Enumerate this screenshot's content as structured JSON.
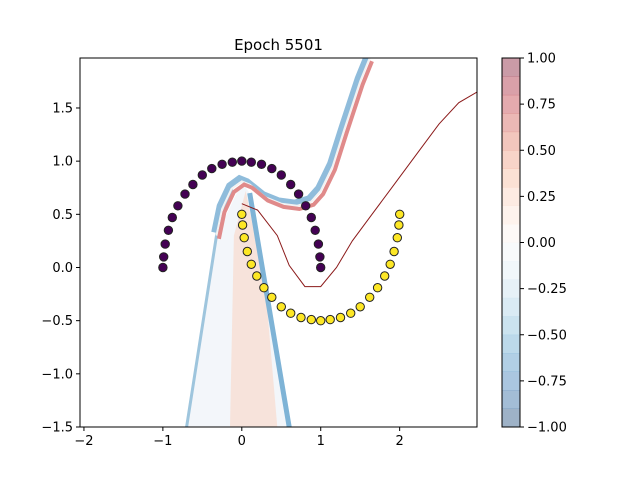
{
  "chart_data": {
    "type": "scatter",
    "title": "Epoch 5501",
    "xlabel": "",
    "ylabel": "",
    "xlim": [
      -2.05,
      2.98
    ],
    "ylim": [
      -1.5,
      1.97
    ],
    "xticks": [
      -2,
      -1,
      0,
      1,
      2
    ],
    "xtick_labels": [
      "−2",
      "−1",
      "0",
      "1",
      "2"
    ],
    "yticks": [
      -1.5,
      -1.0,
      -0.5,
      0.0,
      0.5,
      1.0,
      1.5
    ],
    "ytick_labels": [
      "−1.5",
      "−1.0",
      "−0.5",
      "0.0",
      "0.5",
      "1.0",
      "1.5"
    ],
    "grid": false,
    "series": [
      {
        "label_value": 0,
        "color": "#440154",
        "shape": "upper-moon",
        "points": [
          [
            -1.0,
            0.0
          ],
          [
            -0.99,
            0.1
          ],
          [
            -0.97,
            0.22
          ],
          [
            -0.93,
            0.35
          ],
          [
            -0.88,
            0.47
          ],
          [
            -0.81,
            0.58
          ],
          [
            -0.72,
            0.69
          ],
          [
            -0.62,
            0.78
          ],
          [
            -0.5,
            0.87
          ],
          [
            -0.38,
            0.93
          ],
          [
            -0.25,
            0.97
          ],
          [
            -0.12,
            0.99
          ],
          [
            0.0,
            1.0
          ],
          [
            0.12,
            0.99
          ],
          [
            0.25,
            0.97
          ],
          [
            0.38,
            0.93
          ],
          [
            0.5,
            0.87
          ],
          [
            0.62,
            0.78
          ],
          [
            0.72,
            0.69
          ],
          [
            0.81,
            0.58
          ],
          [
            0.88,
            0.47
          ],
          [
            0.93,
            0.35
          ],
          [
            0.97,
            0.22
          ],
          [
            0.99,
            0.1
          ],
          [
            1.0,
            0.0
          ]
        ]
      },
      {
        "label_value": 1,
        "color": "#fde725",
        "shape": "lower-moon",
        "points": [
          [
            0.0,
            0.5
          ],
          [
            0.01,
            0.4
          ],
          [
            0.03,
            0.28
          ],
          [
            0.07,
            0.15
          ],
          [
            0.12,
            0.03
          ],
          [
            0.19,
            -0.08
          ],
          [
            0.28,
            -0.19
          ],
          [
            0.38,
            -0.28
          ],
          [
            0.5,
            -0.37
          ],
          [
            0.62,
            -0.43
          ],
          [
            0.75,
            -0.47
          ],
          [
            0.88,
            -0.49
          ],
          [
            1.0,
            -0.5
          ],
          [
            1.12,
            -0.49
          ],
          [
            1.25,
            -0.47
          ],
          [
            1.38,
            -0.43
          ],
          [
            1.5,
            -0.37
          ],
          [
            1.62,
            -0.28
          ],
          [
            1.72,
            -0.19
          ],
          [
            1.81,
            -0.08
          ],
          [
            1.88,
            0.03
          ],
          [
            1.93,
            0.15
          ],
          [
            1.97,
            0.28
          ],
          [
            1.99,
            0.4
          ],
          [
            2.0,
            0.5
          ]
        ]
      }
    ],
    "decision_boundary": {
      "level_0_contour": [
        [
          -0.32,
          0.3
        ],
        [
          -0.25,
          0.55
        ],
        [
          -0.13,
          0.74
        ],
        [
          0.0,
          0.81
        ],
        [
          0.1,
          0.78
        ],
        [
          0.3,
          0.66
        ],
        [
          0.5,
          0.6
        ],
        [
          0.7,
          0.58
        ],
        [
          0.88,
          0.62
        ],
        [
          1.0,
          0.72
        ],
        [
          1.15,
          0.95
        ],
        [
          1.3,
          1.3
        ],
        [
          1.5,
          1.75
        ],
        [
          1.62,
          1.97
        ]
      ],
      "wedge": [
        [
          -0.7,
          -1.5
        ],
        [
          -0.32,
          0.3
        ],
        [
          0.0,
          0.8
        ],
        [
          0.1,
          0.7
        ],
        [
          0.6,
          -1.5
        ]
      ],
      "dark_red_boundary": [
        [
          0.0,
          0.6
        ],
        [
          0.2,
          0.54
        ],
        [
          0.45,
          0.3
        ],
        [
          0.6,
          0.02
        ],
        [
          0.8,
          -0.18
        ],
        [
          1.0,
          -0.18
        ],
        [
          1.2,
          0.0
        ],
        [
          1.4,
          0.25
        ],
        [
          1.65,
          0.5
        ],
        [
          1.9,
          0.75
        ],
        [
          2.2,
          1.05
        ],
        [
          2.5,
          1.35
        ],
        [
          2.75,
          1.55
        ],
        [
          2.98,
          1.65
        ]
      ]
    },
    "colorbar": {
      "min": -1.0,
      "max": 1.0,
      "ticks": [
        1.0,
        0.75,
        0.5,
        0.25,
        0.0,
        -0.25,
        -0.5,
        -0.75,
        -1.0
      ],
      "tick_labels": [
        "1.00",
        "0.75",
        "0.50",
        "0.25",
        "0.00",
        "−0.25",
        "−0.50",
        "−0.75",
        "−1.00"
      ],
      "colormap": "RdBu_r",
      "levels": 20,
      "alpha": 0.4
    }
  }
}
